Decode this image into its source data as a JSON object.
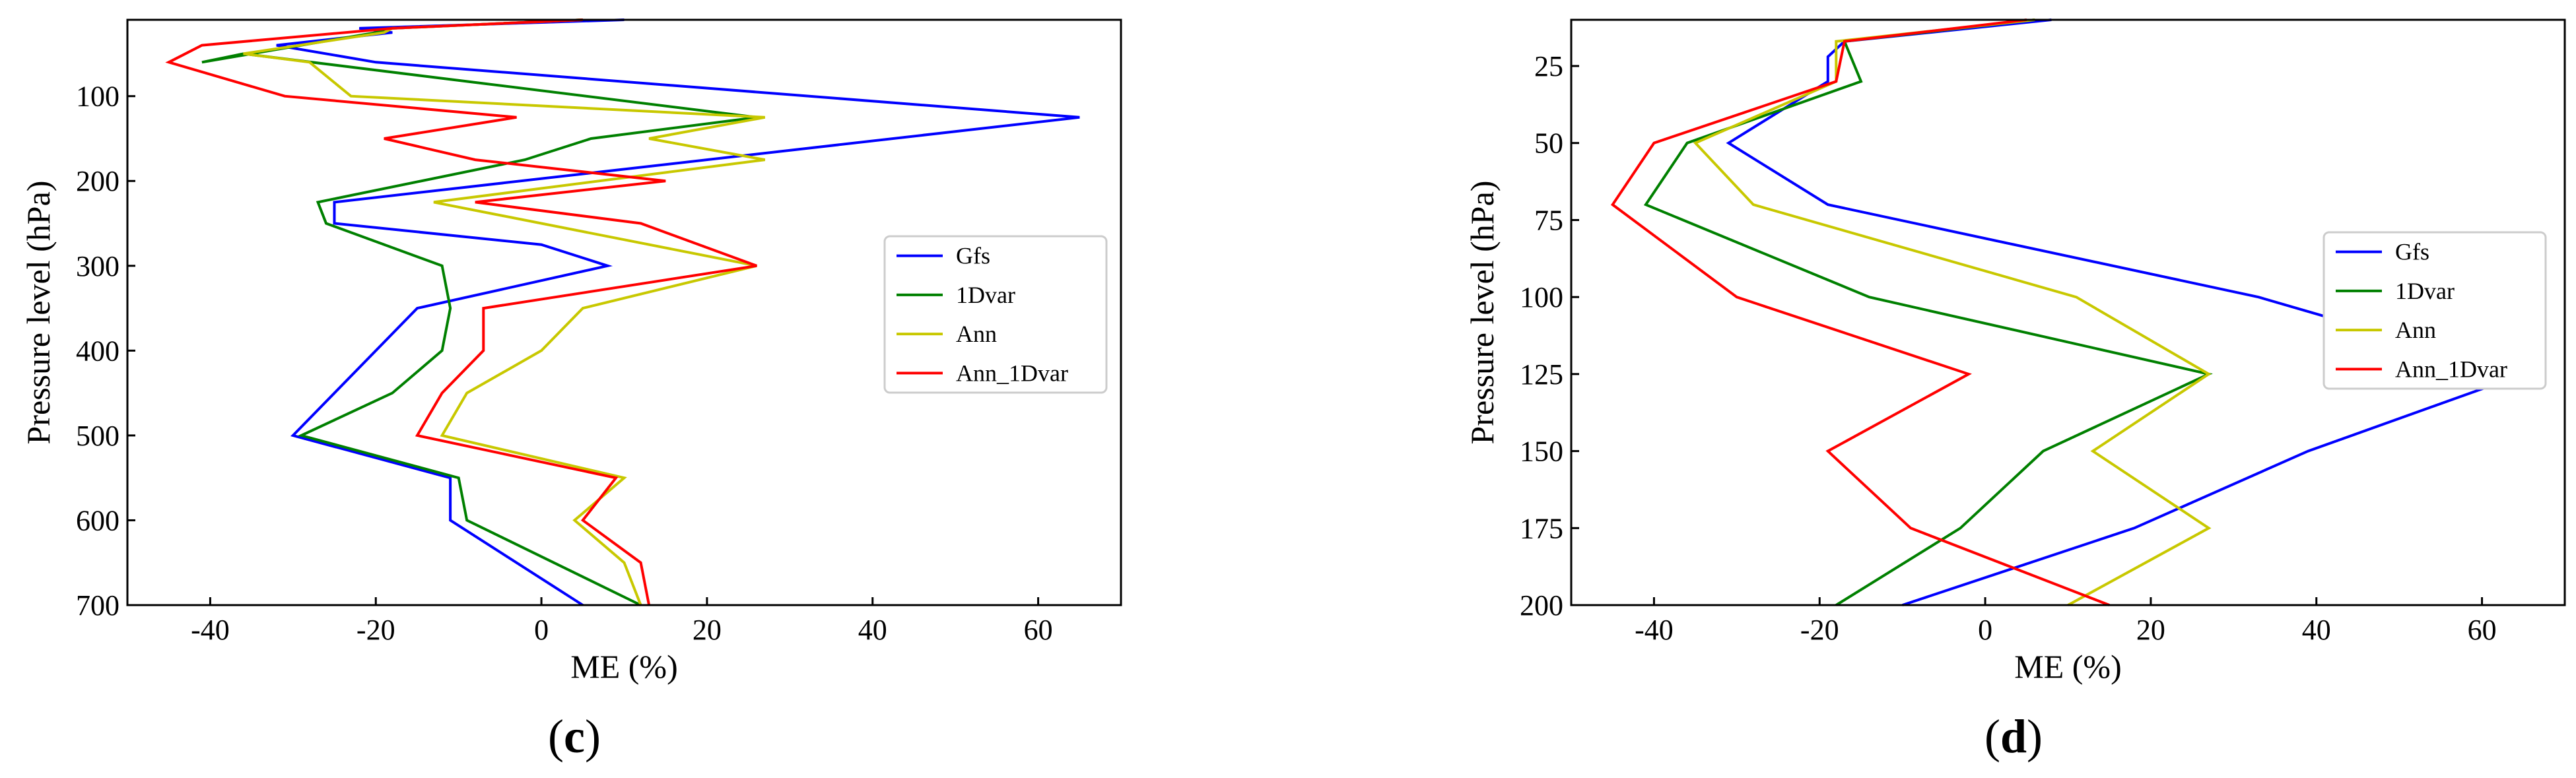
{
  "panels": [
    {
      "id": "c",
      "label_text": "(c)",
      "label_letter": "c"
    },
    {
      "id": "d",
      "label_text": "(d)",
      "label_letter": "d"
    }
  ],
  "chart_data": [
    {
      "type": "line",
      "xlabel": "ME (%)",
      "ylabel": "Pressure level (hPa)",
      "xlim": [
        -50,
        70
      ],
      "ylim": [
        10,
        700
      ],
      "y_inverted": true,
      "x_ticks": [
        -40,
        -20,
        0,
        20,
        40,
        60
      ],
      "y_ticks": [
        100,
        200,
        300,
        400,
        500,
        600,
        700
      ],
      "legend_position": "right",
      "grid": false,
      "series": [
        {
          "name": "Gfs",
          "color": "#0000ff",
          "points": [
            [
              10,
              10
            ],
            [
              -22,
              20
            ],
            [
              -18,
              25
            ],
            [
              -32,
              40
            ],
            [
              -20,
              60
            ],
            [
              65,
              125
            ],
            [
              -25,
              225
            ],
            [
              -25,
              250
            ],
            [
              0,
              275
            ],
            [
              8,
              300
            ],
            [
              -15,
              350
            ],
            [
              -30,
              500
            ],
            [
              -11,
              550
            ],
            [
              -11,
              600
            ],
            [
              5,
              700
            ]
          ]
        },
        {
          "name": "1Dvar",
          "color": "#008000",
          "points": [
            [
              5,
              10
            ],
            [
              -18,
              20
            ],
            [
              -20,
              25
            ],
            [
              -41,
              60
            ],
            [
              -36,
              50
            ],
            [
              26,
              125
            ],
            [
              6,
              150
            ],
            [
              -2,
              175
            ],
            [
              -27,
              225
            ],
            [
              -26,
              250
            ],
            [
              -12,
              300
            ],
            [
              -11,
              350
            ],
            [
              -12,
              400
            ],
            [
              -18,
              450
            ],
            [
              -29,
              500
            ],
            [
              -10,
              550
            ],
            [
              -9,
              600
            ],
            [
              12,
              700
            ]
          ]
        },
        {
          "name": "Ann",
          "color": "#c8c800",
          "points": [
            [
              5,
              10
            ],
            [
              -18,
              20
            ],
            [
              -19,
              25
            ],
            [
              -36,
              50
            ],
            [
              -28,
              60
            ],
            [
              -23,
              100
            ],
            [
              27,
              125
            ],
            [
              13,
              150
            ],
            [
              27,
              175
            ],
            [
              -13,
              225
            ],
            [
              26,
              300
            ],
            [
              5,
              350
            ],
            [
              0,
              400
            ],
            [
              -9,
              450
            ],
            [
              -12,
              500
            ],
            [
              10,
              550
            ],
            [
              4,
              600
            ],
            [
              10,
              650
            ],
            [
              12,
              700
            ]
          ]
        },
        {
          "name": "Ann_1Dvar",
          "color": "#ff0000",
          "points": [
            [
              5,
              10
            ],
            [
              -18,
              20
            ],
            [
              -41,
              40
            ],
            [
              -45,
              60
            ],
            [
              -31,
              100
            ],
            [
              -3,
              125
            ],
            [
              -19,
              150
            ],
            [
              -8,
              175
            ],
            [
              15,
              200
            ],
            [
              -8,
              225
            ],
            [
              12,
              250
            ],
            [
              26,
              300
            ],
            [
              -7,
              350
            ],
            [
              -7,
              400
            ],
            [
              -12,
              450
            ],
            [
              -15,
              500
            ],
            [
              9,
              550
            ],
            [
              5,
              600
            ],
            [
              12,
              650
            ],
            [
              13,
              700
            ]
          ]
        }
      ]
    },
    {
      "type": "line",
      "xlabel": "ME (%)",
      "ylabel": "Pressure level (hPa)",
      "xlim": [
        -50,
        70
      ],
      "ylim": [
        10,
        200
      ],
      "y_inverted": true,
      "x_ticks": [
        -40,
        -20,
        0,
        20,
        40,
        60
      ],
      "y_ticks": [
        25,
        50,
        75,
        100,
        125,
        150,
        175,
        200
      ],
      "legend_position": "right",
      "grid": false,
      "series": [
        {
          "name": "Gfs",
          "color": "#0000ff",
          "points": [
            [
              8,
              10
            ],
            [
              -17,
              17
            ],
            [
              -19,
              22
            ],
            [
              -19,
              30
            ],
            [
              -31,
              50
            ],
            [
              -19,
              70
            ],
            [
              33,
              100
            ],
            [
              65,
              125
            ],
            [
              39,
              150
            ],
            [
              18,
              175
            ],
            [
              -10,
              200
            ]
          ]
        },
        {
          "name": "1Dvar",
          "color": "#008000",
          "points": [
            [
              6,
              10
            ],
            [
              -17,
              17
            ],
            [
              -15,
              30
            ],
            [
              -36,
              50
            ],
            [
              -41,
              70
            ],
            [
              -14,
              100
            ],
            [
              27,
              125
            ],
            [
              7,
              150
            ],
            [
              -3,
              175
            ],
            [
              -18,
              200
            ]
          ]
        },
        {
          "name": "Ann",
          "color": "#c8c800",
          "points": [
            [
              6,
              10
            ],
            [
              -18,
              17
            ],
            [
              -18,
              30
            ],
            [
              -35,
              50
            ],
            [
              -28,
              70
            ],
            [
              11,
              100
            ],
            [
              27,
              125
            ],
            [
              13,
              150
            ],
            [
              27,
              175
            ],
            [
              10,
              200
            ]
          ]
        },
        {
          "name": "Ann_1Dvar",
          "color": "#ff0000",
          "points": [
            [
              5,
              10
            ],
            [
              -17,
              17
            ],
            [
              -18,
              30
            ],
            [
              -40,
              50
            ],
            [
              -45,
              70
            ],
            [
              -30,
              100
            ],
            [
              -2,
              125
            ],
            [
              -19,
              150
            ],
            [
              -9,
              175
            ],
            [
              15,
              200
            ]
          ]
        }
      ]
    }
  ]
}
